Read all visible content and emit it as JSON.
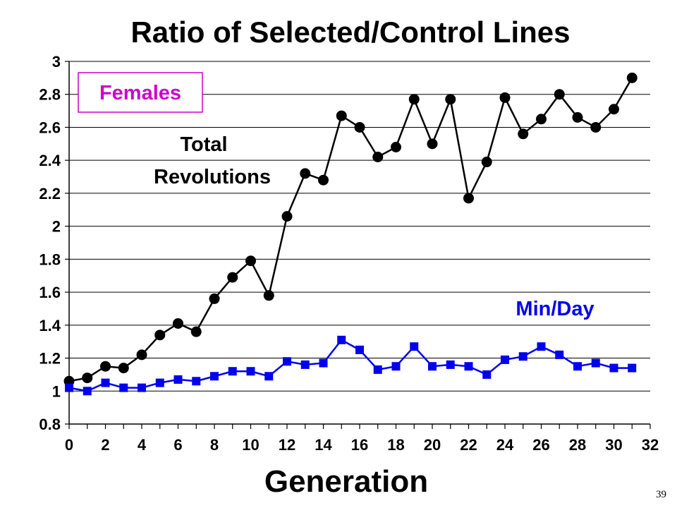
{
  "page_number": "39",
  "chart_data": {
    "type": "line",
    "title": "Ratio of Selected/Control Lines",
    "xlabel": "Generation",
    "ylabel": "",
    "xlim": [
      0,
      32
    ],
    "ylim": [
      0.8,
      3
    ],
    "x_ticks": [
      "0",
      "2",
      "4",
      "6",
      "8",
      "10",
      "12",
      "14",
      "16",
      "18",
      "20",
      "22",
      "24",
      "26",
      "28",
      "30",
      "32"
    ],
    "y_ticks": [
      "0.8",
      "1",
      "1.2",
      "1.4",
      "1.6",
      "1.8",
      "2",
      "2.2",
      "2.4",
      "2.6",
      "2.8",
      "3"
    ],
    "grid": "horizontal",
    "legend_box": {
      "text": "Females",
      "color": "#cc00cc"
    },
    "series": [
      {
        "name": "Total Revolutions",
        "label_lines": [
          "Total",
          "Revolutions"
        ],
        "color": "#000000",
        "marker": "circle",
        "x": [
          0,
          1,
          2,
          3,
          4,
          5,
          6,
          7,
          8,
          9,
          10,
          11,
          12,
          13,
          14,
          15,
          16,
          17,
          18,
          19,
          20,
          21,
          22,
          23,
          24,
          25,
          26,
          27,
          28,
          29,
          30,
          31
        ],
        "values": [
          1.06,
          1.08,
          1.15,
          1.14,
          1.22,
          1.34,
          1.41,
          1.36,
          1.56,
          1.69,
          1.79,
          1.58,
          2.06,
          2.32,
          2.28,
          2.67,
          2.6,
          2.42,
          2.48,
          2.77,
          2.5,
          2.77,
          2.17,
          2.39,
          2.78,
          2.56,
          2.65,
          2.8,
          2.66,
          2.6,
          2.71,
          2.9
        ]
      },
      {
        "name": "Min/Day",
        "label_lines": [
          "Min/Day"
        ],
        "color": "#0000ee",
        "marker": "square",
        "x": [
          0,
          1,
          2,
          3,
          4,
          5,
          6,
          7,
          8,
          9,
          10,
          11,
          12,
          13,
          14,
          15,
          16,
          17,
          18,
          19,
          20,
          21,
          22,
          23,
          24,
          25,
          26,
          27,
          28,
          29,
          30,
          31
        ],
        "values": [
          1.02,
          1.0,
          1.05,
          1.02,
          1.02,
          1.05,
          1.07,
          1.06,
          1.09,
          1.12,
          1.12,
          1.09,
          1.18,
          1.16,
          1.17,
          1.31,
          1.25,
          1.13,
          1.15,
          1.27,
          1.15,
          1.16,
          1.15,
          1.1,
          1.19,
          1.21,
          1.27,
          1.22,
          1.15,
          1.17,
          1.14,
          1.14
        ]
      }
    ]
  }
}
